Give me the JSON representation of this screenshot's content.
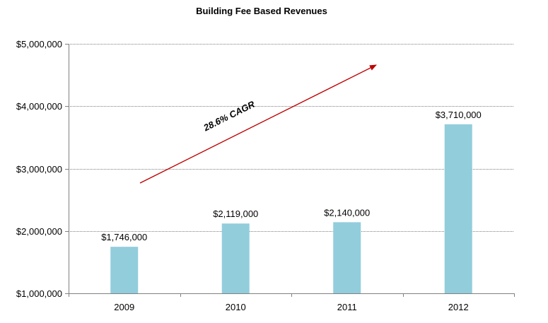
{
  "chart_data": {
    "type": "bar",
    "title": "Building Fee Based Revenues",
    "categories": [
      "2009",
      "2010",
      "2011",
      "2012"
    ],
    "values": [
      1746000,
      2119000,
      2140000,
      3710000
    ],
    "data_labels": [
      "$1,746,000",
      "$2,119,000",
      "$2,140,000",
      "$3,710,000"
    ],
    "ylim": [
      1000000,
      5000000
    ],
    "y_ticks": [
      1000000,
      2000000,
      3000000,
      4000000,
      5000000
    ],
    "y_tick_labels": [
      "$1,000,000",
      "$2,000,000",
      "$3,000,000",
      "$4,000,000",
      "$5,000,000"
    ],
    "xlabel": "",
    "ylabel": "",
    "grid": true,
    "legend": "none",
    "bar_color": "#92cddc",
    "grid_color": "#7f7f7f",
    "annotation": {
      "text": "28.6% CAGR",
      "arrow_color": "#c00000"
    }
  }
}
